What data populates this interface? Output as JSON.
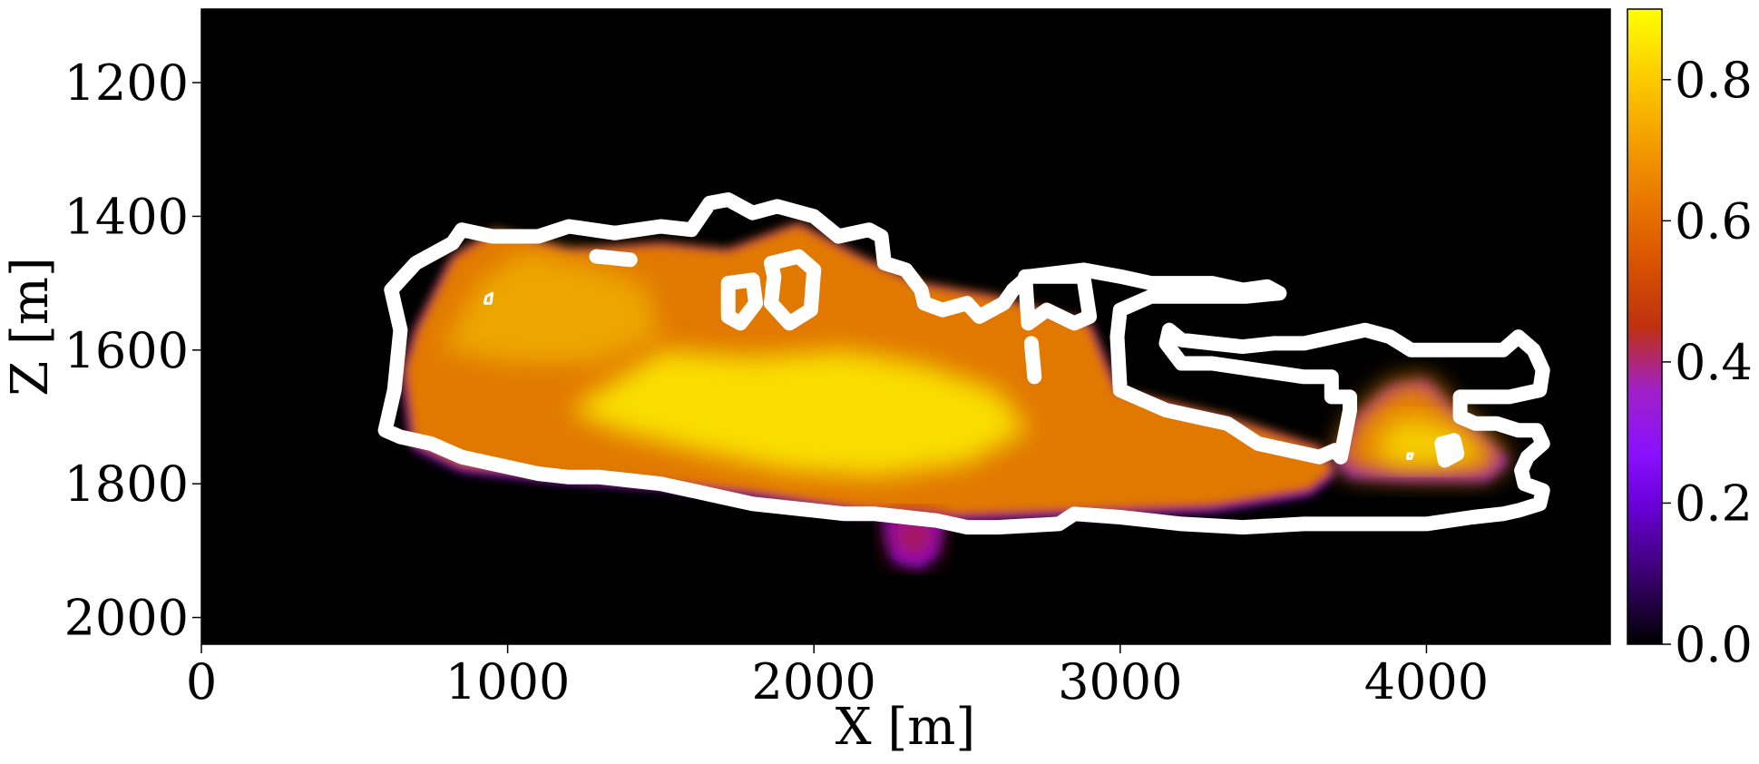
{
  "chart_data": {
    "type": "heatmap",
    "title": "",
    "xlabel": "X [m]",
    "ylabel": "Z [m]",
    "xlim": [
      0,
      4600
    ],
    "ylim": [
      2040,
      1090
    ],
    "y_inverted": true,
    "x_ticks": [
      0,
      1000,
      2000,
      3000,
      4000
    ],
    "x_tick_labels": [
      "0",
      "1000",
      "2000",
      "3000",
      "4000"
    ],
    "y_ticks": [
      1200,
      1400,
      1600,
      1800,
      2000
    ],
    "y_tick_labels": [
      "1200",
      "1400",
      "1600",
      "1800",
      "2000"
    ],
    "colorbar": {
      "colormap": "gnuplot",
      "range": [
        0.0,
        0.9
      ],
      "ticks": [
        0.0,
        0.2,
        0.4,
        0.6,
        0.8
      ],
      "tick_labels": [
        "0.0",
        "0.2",
        "0.4",
        "0.6",
        "0.8"
      ]
    },
    "background_value": 0.0,
    "contour_color": "#ffffff",
    "colors": {
      "background": "#000000",
      "low": "#8000ff",
      "mid": "#cc2200",
      "high": "#ff9d00",
      "peak": "#ffff00"
    },
    "field_regions": [
      {
        "name": "main-plume",
        "value": 0.7,
        "outline": [
          [
            660,
            1630
          ],
          [
            700,
            1570
          ],
          [
            820,
            1460
          ],
          [
            960,
            1420
          ],
          [
            1200,
            1450
          ],
          [
            1500,
            1440
          ],
          [
            1720,
            1450
          ],
          [
            1950,
            1410
          ],
          [
            2150,
            1460
          ],
          [
            2350,
            1500
          ],
          [
            2600,
            1520
          ],
          [
            2900,
            1560
          ],
          [
            2990,
            1660
          ],
          [
            3350,
            1700
          ],
          [
            3650,
            1745
          ],
          [
            3700,
            1780
          ],
          [
            3620,
            1810
          ],
          [
            3300,
            1835
          ],
          [
            2700,
            1845
          ],
          [
            2400,
            1850
          ],
          [
            2150,
            1840
          ],
          [
            1800,
            1815
          ],
          [
            1500,
            1800
          ],
          [
            1150,
            1790
          ],
          [
            850,
            1775
          ],
          [
            690,
            1740
          ]
        ]
      },
      {
        "name": "bottom-lobe",
        "value": 0.4,
        "outline": [
          [
            2230,
            1850
          ],
          [
            2320,
            1845
          ],
          [
            2420,
            1850
          ],
          [
            2400,
            1900
          ],
          [
            2350,
            1920
          ],
          [
            2260,
            1910
          ]
        ]
      },
      {
        "name": "core",
        "value": 0.86,
        "outline": [
          [
            1500,
            1600
          ],
          [
            1800,
            1610
          ],
          [
            2100,
            1600
          ],
          [
            2350,
            1620
          ],
          [
            2600,
            1660
          ],
          [
            2700,
            1720
          ],
          [
            2500,
            1770
          ],
          [
            2200,
            1790
          ],
          [
            1900,
            1780
          ],
          [
            1600,
            1750
          ],
          [
            1350,
            1720
          ],
          [
            1200,
            1690
          ]
        ]
      },
      {
        "name": "upper-left",
        "value": 0.78,
        "outline": [
          [
            780,
            1600
          ],
          [
            900,
            1500
          ],
          [
            1050,
            1450
          ],
          [
            1250,
            1470
          ],
          [
            1450,
            1500
          ],
          [
            1500,
            1580
          ],
          [
            1300,
            1620
          ],
          [
            1000,
            1620
          ]
        ]
      },
      {
        "name": "right-lobe",
        "value": 0.72,
        "outline": [
          [
            3700,
            1760
          ],
          [
            3760,
            1700
          ],
          [
            3880,
            1650
          ],
          [
            4000,
            1640
          ],
          [
            4080,
            1680
          ],
          [
            4200,
            1730
          ],
          [
            4270,
            1760
          ],
          [
            4200,
            1790
          ],
          [
            3950,
            1790
          ],
          [
            3750,
            1785
          ]
        ]
      },
      {
        "name": "right-core",
        "value": 0.84,
        "outline": [
          [
            3850,
            1720
          ],
          [
            3950,
            1700
          ],
          [
            4100,
            1720
          ],
          [
            4200,
            1760
          ],
          [
            4000,
            1775
          ],
          [
            3850,
            1770
          ]
        ]
      }
    ],
    "contours": [
      {
        "name": "main-contour",
        "path": [
          [
            630,
            1660
          ],
          [
            650,
            1570
          ],
          [
            620,
            1510
          ],
          [
            700,
            1470
          ],
          [
            820,
            1440
          ],
          [
            850,
            1420
          ],
          [
            950,
            1430
          ],
          [
            1100,
            1430
          ],
          [
            1200,
            1415
          ],
          [
            1350,
            1425
          ],
          [
            1500,
            1415
          ],
          [
            1600,
            1420
          ],
          [
            1660,
            1380
          ],
          [
            1720,
            1375
          ],
          [
            1800,
            1395
          ],
          [
            1880,
            1385
          ],
          [
            1960,
            1395
          ],
          [
            2000,
            1400
          ],
          [
            2080,
            1430
          ],
          [
            2180,
            1420
          ],
          [
            2220,
            1430
          ],
          [
            2230,
            1470
          ],
          [
            2300,
            1480
          ],
          [
            2350,
            1510
          ],
          [
            2360,
            1530
          ],
          [
            2420,
            1540
          ],
          [
            2500,
            1530
          ],
          [
            2540,
            1550
          ],
          [
            2620,
            1530
          ],
          [
            2650,
            1510
          ],
          [
            2700,
            1490
          ],
          [
            2790,
            1485
          ],
          [
            2880,
            1480
          ],
          [
            3000,
            1490
          ],
          [
            3100,
            1500
          ],
          [
            3200,
            1500
          ],
          [
            3300,
            1500
          ],
          [
            3400,
            1510
          ],
          [
            3480,
            1505
          ],
          [
            3520,
            1515
          ],
          [
            3410,
            1520
          ],
          [
            3300,
            1520
          ],
          [
            3100,
            1520
          ],
          [
            3000,
            1540
          ],
          [
            2990,
            1580
          ],
          [
            3000,
            1660
          ],
          [
            3050,
            1670
          ],
          [
            3150,
            1690
          ],
          [
            3250,
            1700
          ],
          [
            3350,
            1710
          ],
          [
            3450,
            1740
          ],
          [
            3550,
            1750
          ],
          [
            3650,
            1760
          ],
          [
            3700,
            1750
          ],
          [
            3720,
            1760
          ],
          [
            3750,
            1690
          ],
          [
            3750,
            1670
          ],
          [
            3690,
            1670
          ],
          [
            3690,
            1640
          ],
          [
            3650,
            1640
          ],
          [
            3600,
            1640
          ],
          [
            3450,
            1630
          ],
          [
            3300,
            1620
          ],
          [
            3200,
            1620
          ],
          [
            3150,
            1590
          ],
          [
            3160,
            1570
          ],
          [
            3200,
            1585
          ],
          [
            3300,
            1590
          ],
          [
            3400,
            1595
          ],
          [
            3500,
            1590
          ],
          [
            3600,
            1590
          ],
          [
            3700,
            1580
          ],
          [
            3800,
            1570
          ],
          [
            3880,
            1580
          ],
          [
            3950,
            1600
          ],
          [
            4050,
            1600
          ],
          [
            4150,
            1600
          ],
          [
            4250,
            1600
          ],
          [
            4300,
            1580
          ],
          [
            4350,
            1600
          ],
          [
            4380,
            1630
          ],
          [
            4370,
            1660
          ],
          [
            4270,
            1670
          ],
          [
            4110,
            1670
          ],
          [
            4110,
            1700
          ],
          [
            4160,
            1710
          ],
          [
            4230,
            1710
          ],
          [
            4300,
            1720
          ],
          [
            4360,
            1720
          ],
          [
            4380,
            1740
          ],
          [
            4330,
            1760
          ],
          [
            4310,
            1780
          ],
          [
            4320,
            1800
          ],
          [
            4380,
            1810
          ],
          [
            4370,
            1830
          ],
          [
            4300,
            1840
          ],
          [
            4250,
            1845
          ],
          [
            4150,
            1850
          ],
          [
            4000,
            1860
          ],
          [
            3800,
            1860
          ],
          [
            3600,
            1860
          ],
          [
            3400,
            1865
          ],
          [
            3200,
            1860
          ],
          [
            3000,
            1850
          ],
          [
            2850,
            1845
          ],
          [
            2800,
            1860
          ],
          [
            2600,
            1865
          ],
          [
            2500,
            1865
          ],
          [
            2400,
            1855
          ],
          [
            2300,
            1850
          ],
          [
            2200,
            1845
          ],
          [
            2100,
            1845
          ],
          [
            2000,
            1840
          ],
          [
            1900,
            1835
          ],
          [
            1800,
            1830
          ],
          [
            1700,
            1820
          ],
          [
            1600,
            1810
          ],
          [
            1500,
            1800
          ],
          [
            1400,
            1795
          ],
          [
            1300,
            1790
          ],
          [
            1200,
            1790
          ],
          [
            1100,
            1785
          ],
          [
            950,
            1770
          ],
          [
            850,
            1760
          ],
          [
            750,
            1740
          ],
          [
            650,
            1730
          ],
          [
            600,
            1720
          ],
          [
            630,
            1660
          ]
        ]
      },
      {
        "name": "inner-loop-1",
        "path": [
          [
            1720,
            1500
          ],
          [
            1800,
            1495
          ],
          [
            1810,
            1530
          ],
          [
            1760,
            1560
          ],
          [
            1720,
            1550
          ],
          [
            1720,
            1500
          ]
        ]
      },
      {
        "name": "inner-loop-2",
        "path": [
          [
            1860,
            1470
          ],
          [
            1950,
            1460
          ],
          [
            2000,
            1480
          ],
          [
            1990,
            1540
          ],
          [
            1920,
            1560
          ],
          [
            1860,
            1530
          ],
          [
            1870,
            1490
          ],
          [
            1860,
            1470
          ]
        ]
      },
      {
        "name": "inner-loop-3",
        "path": [
          [
            2690,
            1490
          ],
          [
            2880,
            1490
          ],
          [
            2900,
            1550
          ],
          [
            2850,
            1560
          ],
          [
            2760,
            1540
          ],
          [
            2700,
            1560
          ],
          [
            2690,
            1490
          ]
        ]
      },
      {
        "name": "small-segment-1",
        "path": [
          [
            1290,
            1460
          ],
          [
            1400,
            1465
          ]
        ]
      },
      {
        "name": "small-segment-2",
        "path": [
          [
            2710,
            1590
          ],
          [
            2720,
            1640
          ]
        ]
      },
      {
        "name": "small-circle-1",
        "path": [
          [
            930,
            1520
          ],
          [
            950,
            1515
          ],
          [
            945,
            1530
          ],
          [
            925,
            1530
          ],
          [
            930,
            1520
          ]
        ]
      },
      {
        "name": "small-circle-2",
        "path": [
          [
            3720,
            1752
          ],
          [
            3740,
            1748
          ],
          [
            3735,
            1758
          ],
          [
            3720,
            1758
          ],
          [
            3720,
            1752
          ]
        ]
      },
      {
        "name": "small-circle-3",
        "path": [
          [
            3940,
            1755
          ],
          [
            3955,
            1755
          ],
          [
            3950,
            1762
          ],
          [
            3938,
            1762
          ],
          [
            3940,
            1755
          ]
        ]
      },
      {
        "name": "small-blob",
        "path": [
          [
            4050,
            1740
          ],
          [
            4090,
            1735
          ],
          [
            4100,
            1755
          ],
          [
            4060,
            1765
          ],
          [
            4050,
            1740
          ]
        ]
      }
    ]
  }
}
